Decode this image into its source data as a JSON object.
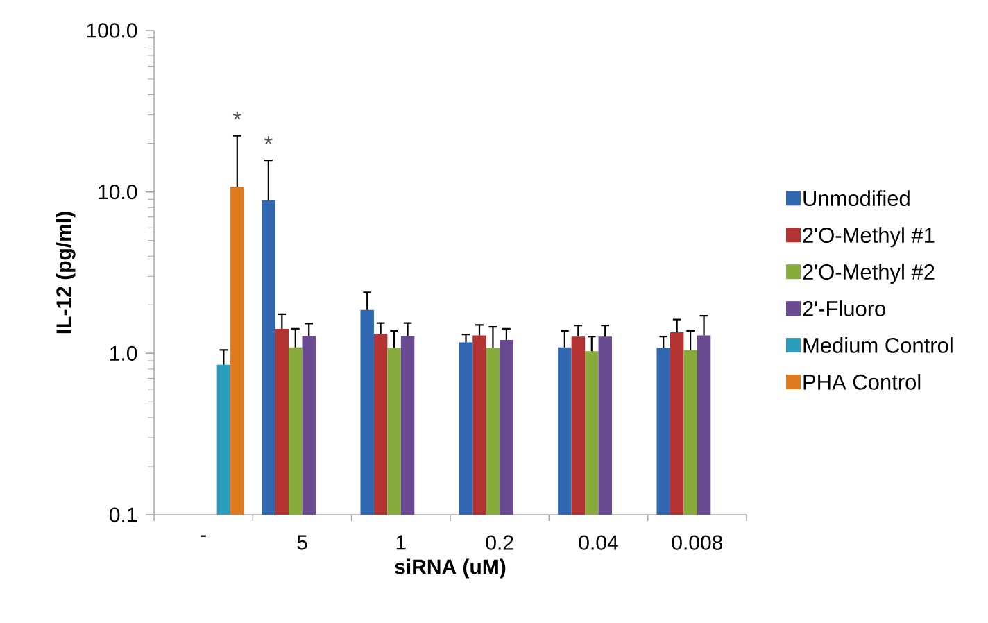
{
  "chart_data": {
    "type": "bar",
    "xlabel": "siRNA (uM)",
    "ylabel": "IL-12 (pg/ml)",
    "categories": [
      "-",
      "5",
      "1",
      "0.2",
      "0.04",
      "0.008"
    ],
    "series": [
      {
        "name": "Unmodified",
        "color": "#3067b0",
        "values": [
          null,
          8.9,
          1.86,
          1.17,
          1.09,
          1.08
        ],
        "errors": [
          null,
          [
            8.9,
            15.7
          ],
          [
            1.86,
            2.39
          ],
          [
            1.17,
            1.31
          ],
          [
            1.09,
            1.38
          ],
          [
            1.08,
            1.27
          ]
        ]
      },
      {
        "name": "2'O-Methyl #1",
        "color": "#b33232",
        "values": [
          null,
          1.42,
          1.32,
          1.29,
          1.27,
          1.35
        ],
        "errors": [
          null,
          [
            1.42,
            1.75
          ],
          [
            1.32,
            1.54
          ],
          [
            1.29,
            1.5
          ],
          [
            1.27,
            1.49
          ],
          [
            1.35,
            1.62
          ]
        ]
      },
      {
        "name": "2'O-Methyl #2",
        "color": "#87ac3b",
        "values": [
          null,
          1.09,
          1.08,
          1.08,
          1.03,
          1.05
        ],
        "errors": [
          null,
          [
            1.09,
            1.42
          ],
          [
            1.08,
            1.38
          ],
          [
            1.08,
            1.46
          ],
          [
            1.03,
            1.27
          ],
          [
            1.05,
            1.38
          ]
        ]
      },
      {
        "name": "2'-Fluoro",
        "color": "#6a4a91",
        "values": [
          null,
          1.28,
          1.28,
          1.21,
          1.27,
          1.29
        ],
        "errors": [
          null,
          [
            1.28,
            1.53
          ],
          [
            1.28,
            1.54
          ],
          [
            1.21,
            1.42
          ],
          [
            1.27,
            1.49
          ],
          [
            1.29,
            1.71
          ]
        ]
      },
      {
        "name": "Medium Control",
        "color": "#2b9dbd",
        "values": [
          0.85,
          null,
          null,
          null,
          null,
          null
        ],
        "errors": [
          [
            0.85,
            1.05
          ],
          null,
          null,
          null,
          null,
          null
        ]
      },
      {
        "name": "PHA Control",
        "color": "#e07a20",
        "values": [
          10.8,
          null,
          null,
          null,
          null,
          null
        ],
        "errors": [
          [
            10.8,
            22.3
          ],
          null,
          null,
          null,
          null,
          null
        ]
      }
    ],
    "log": "y",
    "ylim": [
      0.1,
      100
    ],
    "yticks": [
      {
        "value": 0.1,
        "label": "0.1"
      },
      {
        "value": 1,
        "label": "1.0"
      },
      {
        "value": 10,
        "label": "10.0"
      },
      {
        "value": 100,
        "label": "100.0"
      }
    ],
    "legend": "right",
    "annotations": [
      "*",
      "*"
    ]
  }
}
